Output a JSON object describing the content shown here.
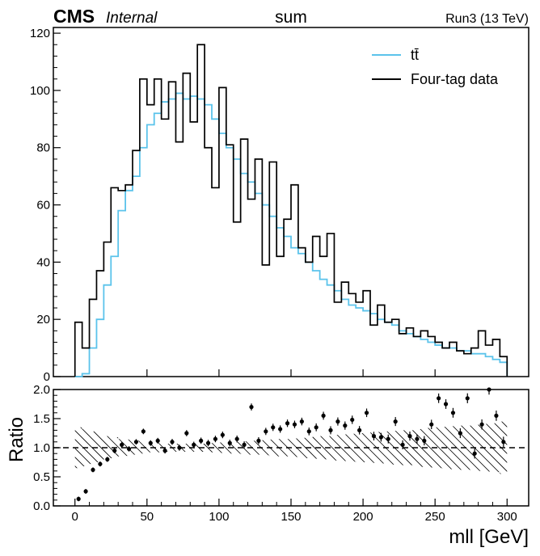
{
  "header": {
    "experiment": "CMS",
    "status": "Internal",
    "title": "sum",
    "energy": "Run3 (13 TeV)"
  },
  "chart_data": [
    {
      "type": "line",
      "panel": "main",
      "x": [
        0,
        5,
        10,
        15,
        20,
        25,
        30,
        35,
        40,
        45,
        50,
        55,
        60,
        65,
        70,
        75,
        80,
        85,
        90,
        95,
        100,
        105,
        110,
        115,
        120,
        125,
        130,
        135,
        140,
        145,
        150,
        155,
        160,
        165,
        170,
        175,
        180,
        185,
        190,
        195,
        200,
        205,
        210,
        215,
        220,
        225,
        230,
        235,
        240,
        245,
        250,
        255,
        260,
        265,
        270,
        275,
        280,
        285,
        290,
        295,
        300
      ],
      "series": [
        {
          "name": "tt̄",
          "color": "#5bc3eb",
          "values": [
            0,
            1,
            10,
            20,
            32,
            42,
            58,
            65,
            70,
            80,
            88,
            92,
            96,
            97,
            99,
            97,
            98,
            97,
            95,
            90,
            85,
            80,
            76,
            71,
            68,
            64,
            60,
            56,
            52,
            49,
            45,
            43,
            40,
            37,
            34,
            32,
            30,
            27,
            25,
            24,
            23,
            22,
            20,
            19,
            18,
            16,
            15,
            14,
            13,
            12,
            11,
            10,
            10,
            9,
            9,
            8,
            8,
            7,
            6,
            5,
            1
          ]
        },
        {
          "name": "Four-tag data",
          "color": "#000000",
          "values": [
            19,
            10,
            27,
            37,
            47,
            66,
            65,
            67,
            79,
            104,
            95,
            104,
            90,
            103,
            82,
            106,
            89,
            116,
            80,
            66,
            101,
            81,
            54,
            83,
            62,
            76,
            39,
            75,
            42,
            55,
            67,
            45,
            40,
            49,
            42,
            50,
            26,
            33,
            29,
            26,
            30,
            18,
            25,
            19,
            20,
            15,
            17,
            14,
            16,
            14,
            12,
            10,
            12,
            9,
            8,
            10,
            16,
            11,
            13,
            7,
            0
          ]
        }
      ],
      "xlim": [
        -15,
        315
      ],
      "ylim": [
        0,
        122
      ],
      "yticks": [
        0,
        20,
        40,
        60,
        80,
        100,
        120
      ],
      "legend": "top-right"
    },
    {
      "type": "scatter",
      "panel": "ratio",
      "x": [
        0,
        5,
        10,
        15,
        20,
        25,
        30,
        35,
        40,
        45,
        50,
        55,
        60,
        65,
        70,
        75,
        80,
        85,
        90,
        95,
        100,
        105,
        110,
        115,
        120,
        125,
        130,
        135,
        140,
        145,
        150,
        155,
        160,
        165,
        170,
        175,
        180,
        185,
        190,
        195,
        200,
        205,
        210,
        215,
        220,
        225,
        230,
        235,
        240,
        245,
        250,
        255,
        260,
        265,
        270,
        275,
        280,
        285,
        290,
        295
      ],
      "values": [
        0.12,
        0.25,
        0.62,
        0.72,
        0.8,
        0.95,
        1.05,
        0.98,
        1.1,
        1.28,
        1.08,
        1.12,
        0.95,
        1.1,
        1.0,
        1.25,
        1.05,
        1.12,
        1.08,
        1.15,
        1.22,
        1.08,
        1.15,
        1.05,
        1.7,
        1.12,
        1.28,
        1.35,
        1.32,
        1.42,
        1.4,
        1.45,
        1.28,
        1.35,
        1.55,
        1.3,
        1.45,
        1.38,
        1.48,
        1.3,
        1.6,
        1.2,
        1.18,
        1.15,
        1.45,
        1.05,
        1.2,
        1.15,
        1.12,
        1.4,
        1.85,
        1.75,
        1.6,
        1.25,
        1.85,
        0.9,
        1.4,
        2.0,
        1.55,
        1.1
      ],
      "ylabel": "Ratio",
      "xlabel": "mll [GeV]",
      "xlim": [
        -15,
        315
      ],
      "ylim": [
        0,
        2.0
      ],
      "yticks": [
        0.0,
        0.5,
        1.0,
        1.5,
        2.0
      ],
      "xticks": [
        0,
        50,
        100,
        150,
        200,
        250,
        300
      ],
      "reference_line": 1.0,
      "band_half_width": [
        0.35,
        0.32,
        0.28,
        0.25,
        0.2,
        0.18,
        0.15,
        0.14,
        0.12,
        0.1,
        0.08,
        0.08,
        0.07,
        0.07,
        0.07,
        0.07,
        0.07,
        0.07,
        0.08,
        0.08,
        0.09,
        0.1,
        0.1,
        0.11,
        0.12,
        0.12,
        0.13,
        0.14,
        0.15,
        0.15,
        0.16,
        0.17,
        0.18,
        0.19,
        0.2,
        0.2,
        0.22,
        0.23,
        0.24,
        0.25,
        0.25,
        0.26,
        0.27,
        0.28,
        0.29,
        0.3,
        0.3,
        0.32,
        0.33,
        0.34,
        0.35,
        0.36,
        0.37,
        0.38,
        0.38,
        0.39,
        0.4,
        0.41,
        0.42,
        0.45
      ]
    }
  ]
}
